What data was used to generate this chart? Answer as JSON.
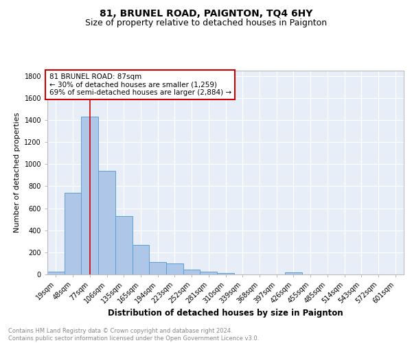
{
  "title": "81, BRUNEL ROAD, PAIGNTON, TQ4 6HY",
  "subtitle": "Size of property relative to detached houses in Paignton",
  "xlabel": "Distribution of detached houses by size in Paignton",
  "ylabel": "Number of detached properties",
  "bar_labels": [
    "19sqm",
    "48sqm",
    "77sqm",
    "106sqm",
    "135sqm",
    "165sqm",
    "194sqm",
    "223sqm",
    "252sqm",
    "281sqm",
    "310sqm",
    "339sqm",
    "368sqm",
    "397sqm",
    "426sqm",
    "455sqm",
    "485sqm",
    "514sqm",
    "543sqm",
    "572sqm",
    "601sqm"
  ],
  "bar_values": [
    25,
    740,
    1430,
    940,
    530,
    270,
    110,
    100,
    45,
    25,
    15,
    0,
    0,
    0,
    20,
    0,
    0,
    0,
    0,
    0,
    0
  ],
  "bar_color": "#aec6e8",
  "bar_edge_color": "#5a9fd4",
  "background_color": "#e8eef8",
  "grid_color": "#ffffff",
  "vline_x": 2.0,
  "vline_color": "#cc0000",
  "annotation_text": "81 BRUNEL ROAD: 87sqm\n← 30% of detached houses are smaller (1,259)\n69% of semi-detached houses are larger (2,884) →",
  "annotation_box_color": "#ffffff",
  "annotation_box_edge": "#cc0000",
  "ylim": [
    0,
    1850
  ],
  "yticks": [
    0,
    200,
    400,
    600,
    800,
    1000,
    1200,
    1400,
    1600,
    1800
  ],
  "footer": "Contains HM Land Registry data © Crown copyright and database right 2024.\nContains public sector information licensed under the Open Government Licence v3.0.",
  "title_fontsize": 10,
  "subtitle_fontsize": 9,
  "xlabel_fontsize": 8.5,
  "ylabel_fontsize": 8,
  "tick_fontsize": 7,
  "annotation_fontsize": 7.5,
  "footer_fontsize": 6
}
